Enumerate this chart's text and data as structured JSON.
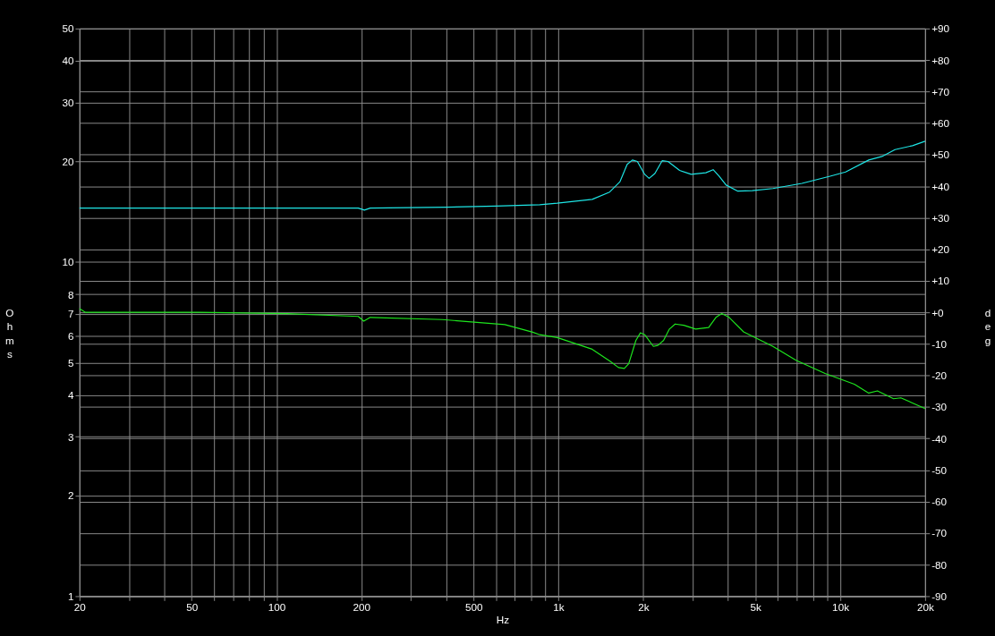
{
  "chart_data": {
    "type": "line",
    "xlabel": "Hz",
    "ylabel": "Ohms",
    "y2label": "deg",
    "log": "xy",
    "grid": true,
    "xlim": [
      20,
      20000
    ],
    "ylim": [
      1,
      50
    ],
    "y2lim": [
      -90,
      90
    ],
    "xticks": [
      20,
      {
        "value": 30,
        "label": null
      },
      {
        "value": 40,
        "label": null
      },
      50,
      {
        "value": 60,
        "label": null
      },
      {
        "value": 70,
        "label": null
      },
      {
        "value": 80,
        "label": null
      },
      {
        "value": 90,
        "label": null
      },
      100,
      200,
      {
        "value": 300,
        "label": null
      },
      {
        "value": 400,
        "label": null
      },
      500,
      {
        "value": 600,
        "label": null
      },
      {
        "value": 700,
        "label": null
      },
      {
        "value": 800,
        "label": null
      },
      {
        "value": 900,
        "label": null
      },
      {
        "value": 1000,
        "label": "1k"
      },
      {
        "value": 2000,
        "label": "2k"
      },
      {
        "value": 3000,
        "label": null
      },
      {
        "value": 4000,
        "label": null
      },
      {
        "value": 5000,
        "label": "5k"
      },
      {
        "value": 6000,
        "label": null
      },
      {
        "value": 7000,
        "label": null
      },
      {
        "value": 8000,
        "label": null
      },
      {
        "value": 9000,
        "label": null
      },
      {
        "value": 10000,
        "label": "10k"
      },
      {
        "value": 20000,
        "label": "20k"
      }
    ],
    "yticks": [
      1,
      2,
      3,
      4,
      5,
      6,
      7,
      8,
      10,
      20,
      30,
      40,
      50
    ],
    "y2ticks": [
      {
        "value": -90,
        "label": "-90"
      },
      {
        "value": -80,
        "label": "-80"
      },
      {
        "value": -70,
        "label": "-70"
      },
      {
        "value": -60,
        "label": "-60"
      },
      {
        "value": -50,
        "label": "-50"
      },
      {
        "value": -40,
        "label": "-40"
      },
      {
        "value": -30,
        "label": "-30"
      },
      {
        "value": -20,
        "label": "-20"
      },
      {
        "value": -10,
        "label": "-10"
      },
      {
        "value": 0,
        "label": "+0"
      },
      {
        "value": 10,
        "label": "+10"
      },
      {
        "value": 20,
        "label": "+20"
      },
      {
        "value": 30,
        "label": "+30"
      },
      {
        "value": 40,
        "label": "+40"
      },
      {
        "value": 50,
        "label": "+50"
      },
      {
        "value": 60,
        "label": "+60"
      },
      {
        "value": 70,
        "label": "+70"
      },
      {
        "value": 80,
        "label": "+80"
      },
      {
        "value": 90,
        "label": "+90"
      }
    ],
    "series": [
      {
        "color": "#1ee6e6",
        "x": [
          20,
          100,
          195,
          205,
          215,
          400,
          600,
          859,
          991,
          1318,
          1520,
          1654,
          1754,
          1831,
          1906,
          2024,
          2098,
          2199,
          2334,
          2448,
          2692,
          2960,
          3334,
          3540,
          3710,
          3936,
          4332,
          4876,
          5768,
          7312,
          9268,
          10448,
          12620,
          14060,
          15640,
          18040,
          20000
        ],
        "values": [
          14.5,
          14.5,
          14.5,
          14.3,
          14.5,
          14.6,
          14.7,
          14.85,
          15.0,
          15.4,
          16.2,
          17.4,
          19.6,
          20.2,
          20.0,
          18.3,
          17.8,
          18.4,
          20.1,
          20.0,
          18.8,
          18.3,
          18.5,
          18.9,
          18.1,
          17.0,
          16.3,
          16.35,
          16.6,
          17.2,
          18.1,
          18.6,
          20.2,
          20.7,
          21.7,
          22.3,
          23.0
        ]
      },
      {
        "color": "#1ee61e",
        "axis": "y2",
        "x": [
          20,
          21,
          53,
          109,
          195,
          204,
          215,
          388,
          646,
          811,
          859,
          991,
          1318,
          1520,
          1634,
          1714,
          1776,
          1884,
          1954,
          2024,
          2173,
          2254,
          2362,
          2477,
          2596,
          2786,
          3068,
          3412,
          3622,
          3800,
          4034,
          4540,
          5768,
          6966,
          8832,
          11218,
          12620,
          13552,
          15454,
          16408,
          20000
        ],
        "values": [
          1.2,
          0,
          0,
          -0.4,
          -1.3,
          -2.8,
          -1.6,
          -2.3,
          -3.9,
          -6.3,
          -7.1,
          -8.0,
          -11.7,
          -15.4,
          -17.5,
          -17.8,
          -16.3,
          -8.9,
          -6.5,
          -7.1,
          -10.8,
          -10.5,
          -8.9,
          -5.3,
          -3.7,
          -4.1,
          -5.3,
          -4.8,
          -1.6,
          -0.4,
          -1.6,
          -6.2,
          -10.8,
          -15.2,
          -19.4,
          -22.8,
          -25.6,
          -24.9,
          -27.4,
          -27.1,
          -30.5
        ]
      }
    ]
  }
}
